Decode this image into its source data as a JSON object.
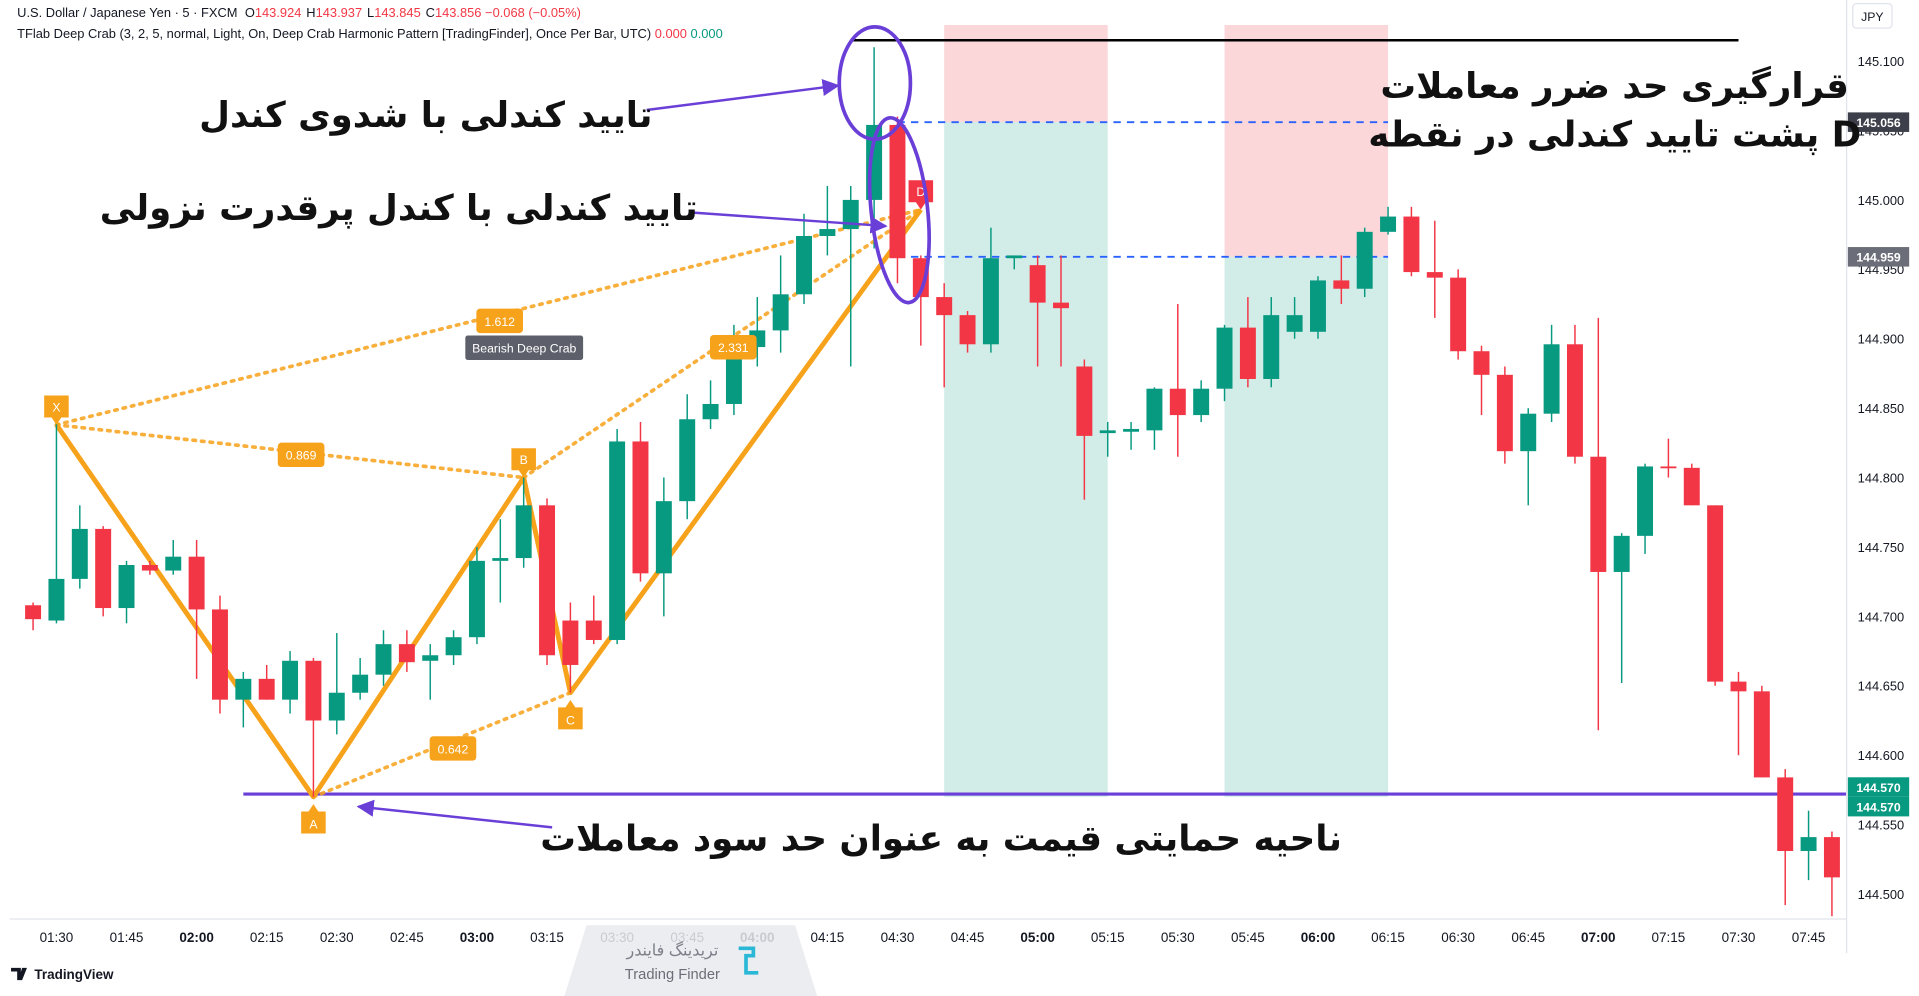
{
  "header": {
    "symbol": "U.S. Dollar / Japanese Yen · 5 · FXCM",
    "ohlc": [
      {
        "key": "O",
        "value": "143.924"
      },
      {
        "key": "H",
        "value": "143.937"
      },
      {
        "key": "L",
        "value": "143.845"
      },
      {
        "key": "C",
        "value": "143.856"
      }
    ],
    "change": "−0.068 (−0.05%)",
    "indicator": "TFlab Deep Crab (3, 2, 5, normal, Light, On, Deep Crab Harmonic Pattern [TradingFinder], Once Per Bar, UTC)",
    "indicator_values": [
      "0.000",
      "0.000"
    ]
  },
  "currency_button": "JPY",
  "brand": "TradingView",
  "watermark": {
    "fa": "تریدینگ فایندر",
    "en": "Trading Finder"
  },
  "annotations": [
    "تایید کندلی با شدوی کندل",
    "تایید کندلی با کندل پرقدرت نزولی",
    [
      "قرارگیری حد ضرر معاملات",
      "پشت تایید کندلی در نقطه D"
    ],
    "ناحیه حمایتی قیمت به عنوان حد سود معاملات"
  ],
  "chart_data": {
    "type": "candlestick",
    "categories": [
      null,
      "01:30",
      null,
      null,
      "01:45",
      null,
      null,
      "02:00",
      null,
      null,
      "02:15",
      null,
      null,
      "02:30",
      null,
      null,
      "02:45",
      null,
      null,
      "03:00",
      null,
      null,
      "03:15",
      null,
      null,
      "03:30",
      null,
      null,
      "03:45",
      null,
      null,
      "04:00",
      null,
      null,
      "04:15",
      null,
      null,
      "04:30",
      null,
      null,
      "04:45",
      null,
      null,
      "05:00",
      null,
      null,
      "05:15",
      null,
      null,
      "05:30",
      null,
      null,
      "05:45",
      null,
      null,
      "06:00",
      null,
      null,
      "06:15",
      null,
      null,
      "06:30",
      null,
      null,
      "06:45",
      null,
      null,
      "07:00",
      null,
      null,
      "07:15",
      null,
      null,
      "07:30",
      null,
      null,
      "07:45",
      null
    ],
    "open": [
      144.708,
      144.697,
      144.727,
      144.763,
      144.706,
      144.737,
      144.733,
      144.743,
      144.705,
      144.64,
      144.655,
      144.64,
      144.668,
      144.625,
      144.645,
      144.658,
      144.68,
      144.668,
      144.672,
      144.685,
      144.74,
      144.742,
      144.78,
      144.697,
      144.697,
      144.683,
      144.826,
      144.731,
      144.783,
      144.842,
      144.853,
      144.894,
      144.906,
      144.932,
      144.974,
      144.979,
      145.0,
      145.054,
      144.958,
      144.93,
      144.917,
      144.896,
      144.958,
      144.953,
      144.926,
      144.88,
      144.832,
      144.833,
      144.834,
      144.864,
      144.845,
      144.864,
      144.908,
      144.871,
      144.905,
      144.905,
      144.942,
      144.936,
      144.977,
      144.988,
      144.948,
      144.944,
      144.891,
      144.874,
      144.819,
      144.846,
      144.896,
      144.815,
      144.732,
      144.758,
      144.808,
      144.807,
      144.78,
      144.653,
      144.646,
      144.584,
      144.531,
      144.541
    ],
    "high": [
      144.71,
      144.84,
      144.78,
      144.765,
      144.74,
      144.74,
      144.755,
      144.755,
      144.715,
      144.66,
      144.665,
      144.675,
      144.67,
      144.688,
      144.67,
      144.69,
      144.69,
      144.68,
      144.69,
      144.75,
      144.77,
      144.8,
      144.785,
      144.71,
      144.715,
      144.835,
      144.84,
      144.8,
      144.86,
      144.87,
      144.91,
      144.93,
      144.96,
      144.99,
      145.01,
      145.01,
      145.11,
      145.06,
      144.96,
      144.94,
      144.92,
      144.98,
      144.96,
      144.96,
      144.96,
      144.885,
      144.84,
      144.84,
      144.865,
      144.925,
      144.87,
      144.91,
      144.93,
      144.93,
      144.93,
      144.945,
      144.96,
      144.98,
      144.995,
      144.995,
      144.985,
      144.95,
      144.895,
      144.88,
      144.85,
      144.91,
      144.91,
      144.915,
      144.76,
      144.81,
      144.828,
      144.81,
      144.78,
      144.66,
      144.65,
      144.59,
      144.56,
      144.545
    ],
    "low": [
      144.69,
      144.695,
      144.72,
      144.7,
      144.695,
      144.73,
      144.73,
      144.655,
      144.63,
      144.62,
      144.64,
      144.63,
      144.57,
      144.615,
      144.64,
      144.65,
      144.66,
      144.64,
      144.665,
      144.68,
      144.71,
      144.735,
      144.665,
      144.645,
      144.68,
      144.68,
      144.725,
      144.7,
      144.77,
      144.835,
      144.845,
      144.88,
      144.89,
      144.925,
      144.96,
      144.88,
      144.965,
      144.94,
      144.895,
      144.865,
      144.89,
      144.89,
      144.95,
      144.88,
      144.88,
      144.784,
      144.815,
      144.82,
      144.82,
      144.815,
      144.84,
      144.855,
      144.865,
      144.865,
      144.9,
      144.9,
      144.925,
      144.93,
      144.975,
      144.945,
      144.915,
      144.885,
      144.845,
      144.81,
      144.78,
      144.84,
      144.81,
      144.618,
      144.652,
      144.745,
      144.8,
      144.78,
      144.65,
      144.6,
      144.584,
      144.492,
      144.51,
      144.484
    ],
    "close": [
      144.698,
      144.727,
      144.763,
      144.706,
      144.737,
      144.733,
      144.743,
      144.705,
      144.64,
      144.655,
      144.64,
      144.668,
      144.625,
      144.645,
      144.658,
      144.68,
      144.667,
      144.672,
      144.685,
      144.74,
      144.742,
      144.78,
      144.672,
      144.665,
      144.683,
      144.826,
      144.731,
      144.783,
      144.842,
      144.853,
      144.894,
      144.906,
      144.932,
      144.974,
      144.979,
      145.0,
      145.054,
      144.958,
      144.93,
      144.917,
      144.896,
      144.958,
      144.96,
      144.926,
      144.922,
      144.83,
      144.834,
      144.835,
      144.864,
      144.845,
      144.864,
      144.908,
      144.871,
      144.917,
      144.917,
      144.942,
      144.936,
      144.977,
      144.988,
      144.948,
      144.944,
      144.891,
      144.874,
      144.819,
      144.846,
      144.896,
      144.815,
      144.732,
      144.758,
      144.808,
      144.807,
      144.78,
      144.653,
      144.646,
      144.584,
      144.531,
      144.541,
      144.512
    ],
    "up_color": "#089981",
    "down_color": "#f23645",
    "ylim": [
      144.482,
      145.144
    ],
    "yticks": [
      {
        "value": 144.5,
        "label": "144.500"
      },
      {
        "value": 144.55,
        "label": "144.550"
      },
      {
        "value": 144.6,
        "label": "144.600"
      },
      {
        "value": 144.65,
        "label": "144.650"
      },
      {
        "value": 144.7,
        "label": "144.700"
      },
      {
        "value": 144.75,
        "label": "144.750"
      },
      {
        "value": 144.8,
        "label": "144.800"
      },
      {
        "value": 144.85,
        "label": "144.850"
      },
      {
        "value": 144.9,
        "label": "144.900"
      },
      {
        "value": 144.95,
        "label": "144.950"
      },
      {
        "value": 145.0,
        "label": "145.000"
      },
      {
        "value": 145.05,
        "label": "145.050"
      },
      {
        "value": 145.1,
        "label": "145.100"
      }
    ],
    "price_labels": [
      {
        "price": 145.056,
        "color": "#3d404a"
      },
      {
        "price": 144.959,
        "color": "#6b6e78"
      },
      {
        "price": {
          "value": 144.57,
          "label": "144.570"
        },
        "color": "#089981"
      },
      {
        "price": {
          "value": 144.57,
          "label": "144.570"
        },
        "color": "#089981"
      }
    ],
    "positions": [
      {
        "start": 39,
        "end": 46,
        "entry": 145.056,
        "stop": 145.126,
        "target": 144.57
      },
      {
        "start": 51,
        "end": 58,
        "entry": 144.959,
        "stop": 145.126,
        "target": 144.57
      }
    ],
    "stop_line": {
      "price": 145.115,
      "from": 35,
      "to": 73,
      "color": "#000000"
    },
    "support_line": {
      "price": 144.572,
      "from": 9,
      "color": "#6a3fd8"
    },
    "pattern": {
      "name": "Bearish Deep Crab",
      "color": "#f7a21b",
      "signal_color": "#f23645",
      "points": [
        {
          "label": "X",
          "at": 1,
          "price": 144.838
        },
        {
          "label": "A",
          "at": 12,
          "price": 144.57
        },
        {
          "label": "B",
          "at": 21,
          "price": 144.8
        },
        {
          "label": "C",
          "at": 23,
          "price": 144.645
        },
        {
          "label": "D",
          "at": 38,
          "price": 144.993
        }
      ],
      "ratios": [
        {
          "value": 1.612,
          "legs": [
            "X",
            "D"
          ]
        },
        {
          "value": 0.869,
          "legs": [
            "X",
            "B"
          ]
        },
        {
          "value": 0.642,
          "legs": [
            "A",
            "C"
          ]
        },
        {
          "value": 2.331,
          "legs": [
            "B",
            "D"
          ]
        }
      ]
    }
  }
}
